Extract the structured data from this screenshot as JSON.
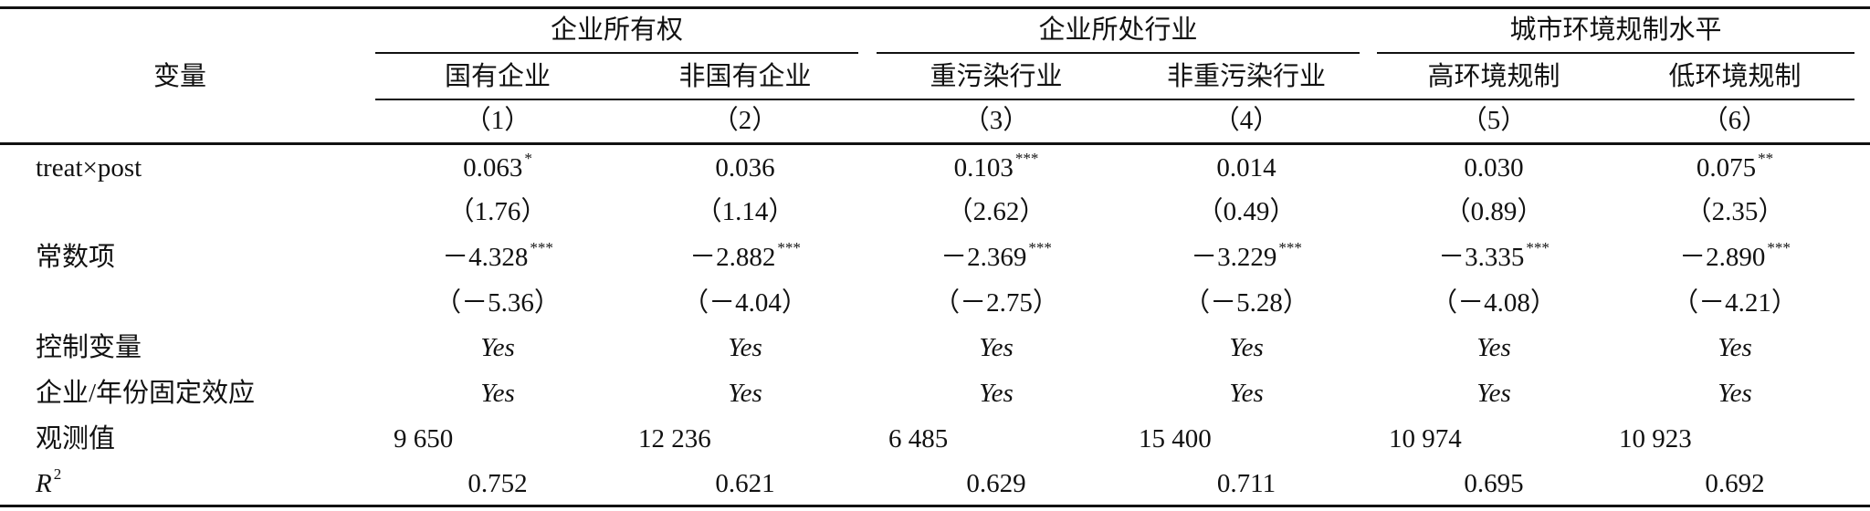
{
  "table": {
    "header": {
      "variable": "变量",
      "groups": [
        {
          "label": "企业所有权",
          "columns": [
            "国有企业",
            "非国有企业"
          ]
        },
        {
          "label": "企业所处行业",
          "columns": [
            "重污染行业",
            "非重污染行业"
          ]
        },
        {
          "label": "城市环境规制水平",
          "columns": [
            "高环境规制",
            "低环境规制"
          ]
        }
      ],
      "column_numbers": [
        "（1）",
        "（2）",
        "（3）",
        "（4）",
        "（5）",
        "（6）"
      ]
    },
    "rows": [
      {
        "label": "treat×post",
        "cells": [
          {
            "text": "0.063",
            "stars": "*"
          },
          "0.036",
          {
            "text": "0.103",
            "stars": "***"
          },
          "0.014",
          "0.030",
          {
            "text": "0.075",
            "stars": "**"
          }
        ]
      },
      {
        "cells": [
          "（1.76）",
          "（1.14）",
          "（2.62）",
          "（0.49）",
          "（0.89）",
          "（2.35）"
        ]
      },
      {
        "label": "常数项",
        "cells": [
          {
            "text": "－4.328",
            "stars": "***"
          },
          {
            "text": "－2.882",
            "stars": "***"
          },
          {
            "text": "－2.369",
            "stars": "***"
          },
          {
            "text": "－3.229",
            "stars": "***"
          },
          {
            "text": "－3.335",
            "stars": "***"
          },
          {
            "text": "－2.890",
            "stars": "***"
          }
        ]
      },
      {
        "cells": [
          "（－5.36）",
          "（－4.04）",
          "（－2.75）",
          "（－5.28）",
          "（－4.08）",
          "（－4.21）"
        ]
      },
      {
        "label": "控制变量",
        "italic": true,
        "cells": [
          "Yes",
          "Yes",
          "Yes",
          "Yes",
          "Yes",
          "Yes"
        ]
      },
      {
        "label": "企业/年份固定效应",
        "italic": true,
        "cells": [
          "Yes",
          "Yes",
          "Yes",
          "Yes",
          "Yes",
          "Yes"
        ]
      },
      {
        "label": "观测值",
        "align": "left",
        "cells": [
          "9 650",
          "12 236",
          "6 485",
          "15 400",
          "10 974",
          "10 923"
        ]
      },
      {
        "label": "R",
        "label_sup": "2",
        "cells": [
          "0.752",
          "0.621",
          "0.629",
          "0.711",
          "0.695",
          "0.692"
        ]
      }
    ]
  }
}
